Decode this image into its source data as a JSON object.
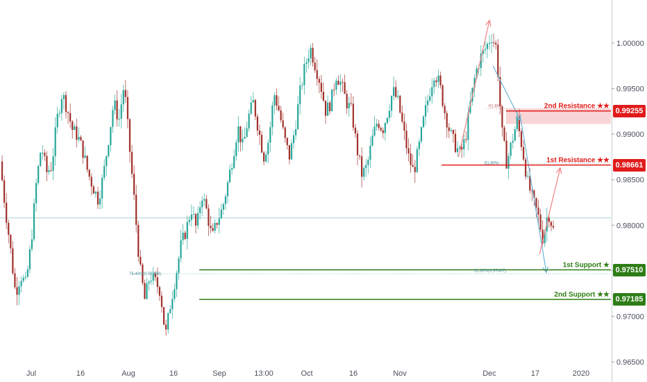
{
  "chart_data": {
    "type": "line",
    "subtype": "candlestick",
    "x_tick_labels": [
      "Jul",
      "16",
      "Aug",
      "16",
      "Sep",
      "13:00",
      "Oct",
      "16",
      "Nov",
      "Dec",
      "17",
      "2020"
    ],
    "y_tick_labels": [
      "1.00000",
      "0.99500",
      "0.99000",
      "0.98500",
      "0.98000",
      "0.97500",
      "0.97000",
      "0.96500"
    ],
    "ylim": [
      0.9648,
      1.0022
    ],
    "grid": false,
    "colors": {
      "up": "#26a69a",
      "down": "#a0302a",
      "resistance": "#e01b1b",
      "support": "#2e7d16",
      "zone": "#f8c9cc",
      "projection_down": "#6bb3d6",
      "projection_up": "#ef8080"
    },
    "levels": [
      {
        "label": "2nd Resistance ★★",
        "value": "0.99255",
        "price": 0.99255,
        "type": "resistance"
      },
      {
        "label": "1st Resistance ★★",
        "value": "0.98661",
        "price": 0.98661,
        "type": "resistance"
      },
      {
        "label": "1st Support ★",
        "value": "0.97510",
        "price": 0.9751,
        "type": "support"
      },
      {
        "label": "2nd Support ★★",
        "value": "0.97185",
        "price": 0.97185,
        "type": "support"
      }
    ],
    "fib_labels": [
      "61.80%",
      "61.80%",
      "76.40%(0.97468)",
      "61.80%(0.97497)"
    ],
    "horizontal_line": 0.9808,
    "close_series": [
      {
        "x": 0,
        "y": 0.987
      },
      {
        "x": 3,
        "y": 0.982
      },
      {
        "x": 6,
        "y": 0.9775
      },
      {
        "x": 9,
        "y": 0.9725
      },
      {
        "x": 12,
        "y": 0.9745
      },
      {
        "x": 15,
        "y": 0.9735
      },
      {
        "x": 18,
        "y": 0.978
      },
      {
        "x": 21,
        "y": 0.9845
      },
      {
        "x": 24,
        "y": 0.9888
      },
      {
        "x": 27,
        "y": 0.9858
      },
      {
        "x": 30,
        "y": 0.9865
      },
      {
        "x": 33,
        "y": 0.9915
      },
      {
        "x": 36,
        "y": 0.9945
      },
      {
        "x": 39,
        "y": 0.9928
      },
      {
        "x": 42,
        "y": 0.9905
      },
      {
        "x": 45,
        "y": 0.9898
      },
      {
        "x": 48,
        "y": 0.9882
      },
      {
        "x": 51,
        "y": 0.9858
      },
      {
        "x": 54,
        "y": 0.9842
      },
      {
        "x": 57,
        "y": 0.9828
      },
      {
        "x": 60,
        "y": 0.9855
      },
      {
        "x": 63,
        "y": 0.9895
      },
      {
        "x": 66,
        "y": 0.9935
      },
      {
        "x": 69,
        "y": 0.9915
      },
      {
        "x": 72,
        "y": 0.9955
      },
      {
        "x": 75,
        "y": 0.9888
      },
      {
        "x": 78,
        "y": 0.9825
      },
      {
        "x": 81,
        "y": 0.9755
      },
      {
        "x": 84,
        "y": 0.9718
      },
      {
        "x": 87,
        "y": 0.9745
      },
      {
        "x": 90,
        "y": 0.9738
      },
      {
        "x": 93,
        "y": 0.9728
      },
      {
        "x": 96,
        "y": 0.9678
      },
      {
        "x": 99,
        "y": 0.9715
      },
      {
        "x": 102,
        "y": 0.9745
      },
      {
        "x": 105,
        "y": 0.9778
      },
      {
        "x": 108,
        "y": 0.9795
      },
      {
        "x": 111,
        "y": 0.9818
      },
      {
        "x": 114,
        "y": 0.9795
      },
      {
        "x": 117,
        "y": 0.9835
      },
      {
        "x": 120,
        "y": 0.9815
      },
      {
        "x": 123,
        "y": 0.9785
      },
      {
        "x": 126,
        "y": 0.9805
      },
      {
        "x": 129,
        "y": 0.9818
      },
      {
        "x": 132,
        "y": 0.9845
      },
      {
        "x": 135,
        "y": 0.9875
      },
      {
        "x": 138,
        "y": 0.9908
      },
      {
        "x": 141,
        "y": 0.9885
      },
      {
        "x": 144,
        "y": 0.9918
      },
      {
        "x": 147,
        "y": 0.9935
      },
      {
        "x": 150,
        "y": 0.9905
      },
      {
        "x": 153,
        "y": 0.9875
      },
      {
        "x": 156,
        "y": 0.9895
      },
      {
        "x": 159,
        "y": 0.9945
      },
      {
        "x": 162,
        "y": 0.9925
      },
      {
        "x": 165,
        "y": 0.9895
      },
      {
        "x": 168,
        "y": 0.9875
      },
      {
        "x": 171,
        "y": 0.9905
      },
      {
        "x": 174,
        "y": 0.9945
      },
      {
        "x": 177,
        "y": 0.9975
      },
      {
        "x": 180,
        "y": 0.9995
      },
      {
        "x": 183,
        "y": 0.9975
      },
      {
        "x": 186,
        "y": 0.9955
      },
      {
        "x": 189,
        "y": 0.9925
      },
      {
        "x": 192,
        "y": 0.9935
      },
      {
        "x": 195,
        "y": 0.9965
      },
      {
        "x": 198,
        "y": 0.9955
      },
      {
        "x": 201,
        "y": 0.9935
      },
      {
        "x": 204,
        "y": 0.9925
      },
      {
        "x": 207,
        "y": 0.9885
      },
      {
        "x": 210,
        "y": 0.9855
      },
      {
        "x": 213,
        "y": 0.9865
      },
      {
        "x": 216,
        "y": 0.9895
      },
      {
        "x": 219,
        "y": 0.9915
      },
      {
        "x": 222,
        "y": 0.9905
      },
      {
        "x": 225,
        "y": 0.9925
      },
      {
        "x": 228,
        "y": 0.9948
      },
      {
        "x": 231,
        "y": 0.9935
      },
      {
        "x": 234,
        "y": 0.9905
      },
      {
        "x": 237,
        "y": 0.9875
      },
      {
        "x": 240,
        "y": 0.9858
      },
      {
        "x": 243,
        "y": 0.9885
      },
      {
        "x": 246,
        "y": 0.9918
      },
      {
        "x": 249,
        "y": 0.9945
      },
      {
        "x": 252,
        "y": 0.9968
      },
      {
        "x": 255,
        "y": 0.9955
      },
      {
        "x": 258,
        "y": 0.9925
      },
      {
        "x": 261,
        "y": 0.9902
      },
      {
        "x": 264,
        "y": 0.9888
      },
      {
        "x": 267,
        "y": 0.9878
      },
      {
        "x": 270,
        "y": 0.9895
      },
      {
        "x": 273,
        "y": 0.9935
      },
      {
        "x": 276,
        "y": 0.9968
      },
      {
        "x": 279,
        "y": 0.9985
      },
      {
        "x": 282,
        "y": 0.9995
      },
      {
        "x": 285,
        "y": 1.0008
      },
      {
        "x": 288,
        "y": 0.9995
      },
      {
        "x": 291,
        "y": 0.9905
      },
      {
        "x": 294,
        "y": 0.9868
      },
      {
        "x": 297,
        "y": 0.9892
      },
      {
        "x": 300,
        "y": 0.9915
      },
      {
        "x": 303,
        "y": 0.9885
      },
      {
        "x": 306,
        "y": 0.9848
      },
      {
        "x": 309,
        "y": 0.9828
      },
      {
        "x": 312,
        "y": 0.9812
      },
      {
        "x": 315,
        "y": 0.9785
      },
      {
        "x": 318,
        "y": 0.9815
      },
      {
        "x": 321,
        "y": 0.9795
      }
    ],
    "projections": [
      {
        "from": [
          266,
          0.9875
        ],
        "to": [
          284,
          1.0025
        ],
        "color": "#ef8080"
      },
      {
        "from": [
          286,
          0.9975
        ],
        "to": [
          302,
          0.9915
        ],
        "color": "#6bb3d6"
      },
      {
        "from": [
          302,
          0.9918
        ],
        "to": [
          317,
          0.9748
        ],
        "color": "#6bb3d6"
      },
      {
        "from": [
          313,
          0.9768
        ],
        "to": [
          325,
          0.9863
        ],
        "color": "#ef8080"
      }
    ]
  }
}
